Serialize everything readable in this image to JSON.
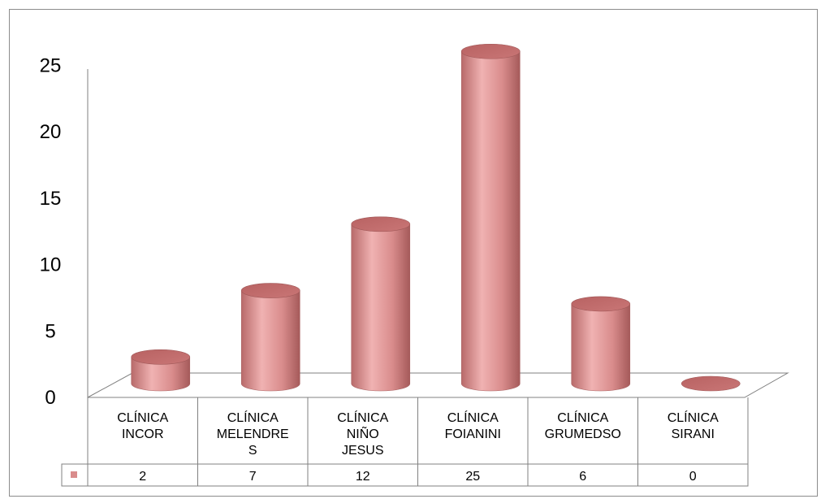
{
  "chart_data": {
    "type": "bar",
    "style": "3d-cylinder",
    "categories": [
      [
        "CLÍNICA",
        "INCOR"
      ],
      [
        "CLÍNICA",
        "MELENDRE",
        "S"
      ],
      [
        "CLÍNICA",
        "NIÑO",
        "JESUS"
      ],
      [
        "CLÍNICA",
        "FOIANINI"
      ],
      [
        "CLÍNICA",
        "GRUMEDSO"
      ],
      [
        "CLÍNICA",
        "SIRANI"
      ]
    ],
    "series": [
      {
        "values": [
          2,
          7,
          12,
          25,
          6,
          0
        ],
        "color": "#d98c8c"
      }
    ],
    "table_values": [
      "2",
      "7",
      "12",
      "25",
      "6",
      "0"
    ],
    "yticks": [
      "0",
      "5",
      "10",
      "15",
      "20",
      "25"
    ],
    "ylim": [
      0,
      25
    ],
    "grid": false,
    "legend": "data-table"
  }
}
